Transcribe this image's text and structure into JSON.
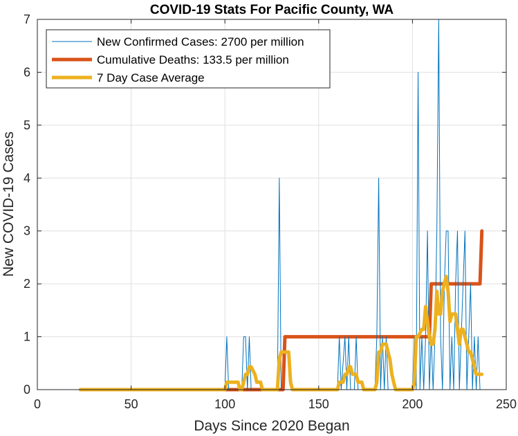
{
  "chart_data": {
    "type": "line",
    "title": "COVID-19 Stats For Pacific County, WA",
    "xlabel": "Days Since 2020 Began",
    "ylabel": "New COVID-19 Cases",
    "xlim": [
      0,
      250
    ],
    "ylim": [
      0,
      7
    ],
    "xticks": [
      0,
      50,
      100,
      150,
      200,
      250
    ],
    "yticks": [
      0,
      1,
      2,
      3,
      4,
      5,
      6,
      7
    ],
    "grid": true,
    "legend_position": "top-left",
    "series": [
      {
        "name": "New Confirmed Cases: 2700 per million",
        "color": "#0072BD",
        "width": 1,
        "points": [
          [
            23,
            0
          ],
          [
            100,
            0
          ],
          [
            101,
            1
          ],
          [
            102,
            0
          ],
          [
            109,
            0
          ],
          [
            110,
            1
          ],
          [
            111,
            1
          ],
          [
            112,
            0
          ],
          [
            113,
            1
          ],
          [
            114,
            0
          ],
          [
            128,
            0
          ],
          [
            129,
            4
          ],
          [
            130,
            0
          ],
          [
            160,
            0
          ],
          [
            161,
            1
          ],
          [
            162,
            0
          ],
          [
            164,
            1
          ],
          [
            165,
            0
          ],
          [
            166,
            1
          ],
          [
            167,
            0
          ],
          [
            169,
            0
          ],
          [
            170,
            1
          ],
          [
            171,
            0
          ],
          [
            180,
            0
          ],
          [
            181,
            1
          ],
          [
            182,
            4
          ],
          [
            183,
            0
          ],
          [
            184,
            1
          ],
          [
            185,
            0
          ],
          [
            186,
            1
          ],
          [
            187,
            0
          ],
          [
            200,
            0
          ],
          [
            201,
            1
          ],
          [
            202,
            0
          ],
          [
            203,
            6
          ],
          [
            204,
            0
          ],
          [
            205,
            1
          ],
          [
            206,
            0
          ],
          [
            207,
            1
          ],
          [
            208,
            3
          ],
          [
            209,
            0
          ],
          [
            210,
            1
          ],
          [
            211,
            0
          ],
          [
            212,
            1
          ],
          [
            213,
            3
          ],
          [
            214,
            7
          ],
          [
            215,
            1
          ],
          [
            216,
            0
          ],
          [
            217,
            2
          ],
          [
            218,
            3
          ],
          [
            219,
            3
          ],
          [
            220,
            0
          ],
          [
            221,
            1
          ],
          [
            222,
            0
          ],
          [
            223,
            2
          ],
          [
            224,
            3
          ],
          [
            225,
            0
          ],
          [
            226,
            1
          ],
          [
            227,
            2
          ],
          [
            228,
            3
          ],
          [
            229,
            0
          ],
          [
            230,
            1
          ],
          [
            231,
            2
          ],
          [
            232,
            0
          ],
          [
            233,
            1
          ],
          [
            234,
            0
          ],
          [
            235,
            1
          ],
          [
            236,
            0
          ],
          [
            237,
            0
          ]
        ]
      },
      {
        "name": "Cumulative Deaths: 133.5 per million",
        "color": "#D95319",
        "width": 5,
        "points": [
          [
            23,
            0
          ],
          [
            131,
            0
          ],
          [
            132,
            1
          ],
          [
            209,
            1
          ],
          [
            210,
            2
          ],
          [
            236,
            2
          ],
          [
            237,
            3
          ]
        ]
      },
      {
        "name": "7 Day Case Average",
        "color": "#EDB120",
        "width": 5,
        "points": [
          [
            23,
            0
          ],
          [
            100,
            0
          ],
          [
            101,
            0.14
          ],
          [
            107,
            0.14
          ],
          [
            108,
            0
          ],
          [
            109,
            0
          ],
          [
            110,
            0.14
          ],
          [
            111,
            0.29
          ],
          [
            112,
            0.29
          ],
          [
            113,
            0.43
          ],
          [
            114,
            0.43
          ],
          [
            116,
            0.29
          ],
          [
            117,
            0.14
          ],
          [
            119,
            0.14
          ],
          [
            120,
            0
          ],
          [
            128,
            0
          ],
          [
            129,
            0.57
          ],
          [
            130,
            0.71
          ],
          [
            133,
            0.71
          ],
          [
            134,
            0.71
          ],
          [
            135,
            0.14
          ],
          [
            136,
            0
          ],
          [
            160,
            0
          ],
          [
            161,
            0.14
          ],
          [
            163,
            0.14
          ],
          [
            164,
            0.29
          ],
          [
            165,
            0.29
          ],
          [
            166,
            0.43
          ],
          [
            167,
            0.43
          ],
          [
            168,
            0.29
          ],
          [
            170,
            0.29
          ],
          [
            171,
            0.14
          ],
          [
            173,
            0.14
          ],
          [
            174,
            0
          ],
          [
            180,
            0
          ],
          [
            181,
            0.14
          ],
          [
            182,
            0.71
          ],
          [
            183,
            0.71
          ],
          [
            184,
            0.86
          ],
          [
            186,
            0.86
          ],
          [
            187,
            0.71
          ],
          [
            188,
            0.57
          ],
          [
            189,
            0.29
          ],
          [
            190,
            0.14
          ],
          [
            191,
            0
          ],
          [
            200,
            0
          ],
          [
            201,
            0.14
          ],
          [
            202,
            1
          ],
          [
            203,
            1
          ],
          [
            205,
            1.14
          ],
          [
            206,
            1.14
          ],
          [
            207,
            1.57
          ],
          [
            208,
            1.29
          ],
          [
            209,
            1
          ],
          [
            210,
            0.86
          ],
          [
            211,
            0.86
          ],
          [
            212,
            1.14
          ],
          [
            213,
            1.86
          ],
          [
            214,
            1.43
          ],
          [
            215,
            1.43
          ],
          [
            216,
            1.86
          ],
          [
            217,
            2
          ],
          [
            218,
            2.14
          ],
          [
            219,
            1.86
          ],
          [
            220,
            1.29
          ],
          [
            221,
            1.43
          ],
          [
            222,
            1.43
          ],
          [
            223,
            1.43
          ],
          [
            224,
            1.14
          ],
          [
            225,
            0.86
          ],
          [
            226,
            1.14
          ],
          [
            227,
            1.14
          ],
          [
            228,
            1
          ],
          [
            229,
            0.86
          ],
          [
            230,
            0.71
          ],
          [
            231,
            0.71
          ],
          [
            232,
            0.57
          ],
          [
            233,
            0.43
          ],
          [
            234,
            0.29
          ],
          [
            236,
            0.29
          ],
          [
            237,
            0.29
          ]
        ]
      }
    ]
  }
}
